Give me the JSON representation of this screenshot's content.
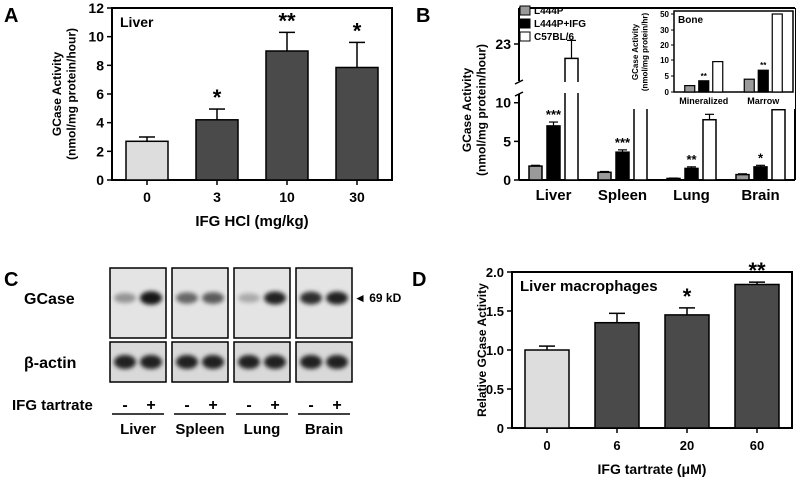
{
  "panel_labels": {
    "a": "A",
    "b": "B",
    "c": "C",
    "d": "D"
  },
  "colors": {
    "dark": "#4a4a4a",
    "light": "#dddddd",
    "mid": "#9a9a9a",
    "white": "#ffffff",
    "black": "#000000"
  },
  "chart_data": [
    {
      "id": "A",
      "type": "bar",
      "inner_title": "Liver",
      "categories": [
        "0",
        "3",
        "10",
        "30"
      ],
      "values": [
        2.7,
        4.2,
        9.0,
        7.85
      ],
      "errors": [
        0.3,
        0.75,
        1.3,
        1.75
      ],
      "significance": [
        "",
        "*",
        "**",
        "*"
      ],
      "bar_colors": [
        "light",
        "dark",
        "dark",
        "dark"
      ],
      "ylim": [
        0,
        12
      ],
      "yticks": [
        "0",
        "2",
        "4",
        "6",
        "8",
        "10",
        "12"
      ],
      "ylabel_lines": [
        "GCase Activity",
        "(nmol/mg protein/hour)"
      ],
      "xlabel": "IFG HCl (mg/kg)"
    },
    {
      "id": "B",
      "type": "bar",
      "categories": [
        "Liver",
        "Spleen",
        "Lung",
        "Brain"
      ],
      "series": [
        {
          "name": "L444P",
          "values": [
            1.8,
            1.0,
            0.2,
            0.7
          ],
          "errors": [
            0.1,
            0.1,
            0.05,
            0.1
          ],
          "color": "mid"
        },
        {
          "name": "L444P+IFG",
          "values": [
            7.0,
            3.6,
            1.5,
            1.7
          ],
          "errors": [
            0.5,
            0.3,
            0.2,
            0.2
          ],
          "color": "black"
        },
        {
          "name": "C57BL/6",
          "values": [
            22.2,
            10.7,
            7.8,
            9.1
          ],
          "errors": [
            1.0,
            0.3,
            0.7,
            0.2
          ],
          "color": "white"
        }
      ],
      "significance": [
        "***",
        "***",
        "**",
        "*"
      ],
      "axis_break": [
        11,
        21
      ],
      "yticks": [
        "0",
        "5",
        "10",
        "23"
      ],
      "ylabel_lines": [
        "GCase Activity",
        "(nmol/mg protein/hour)"
      ],
      "inset": {
        "title": "Bone",
        "categories": [
          "Mineralized",
          "Marrow"
        ],
        "series": [
          {
            "name": "L444P",
            "values": [
              2,
              4
            ],
            "color": "mid"
          },
          {
            "name": "L444P+IFG",
            "values": [
              3.5,
              6.8
            ],
            "color": "black"
          },
          {
            "name": "C57BL/6",
            "values": [
              9.5,
              50
            ],
            "color": "white"
          }
        ],
        "significance": [
          "**",
          "**"
        ],
        "yticks": [
          "0",
          "5",
          "10",
          "20",
          "30",
          "50"
        ],
        "ylabel_lines": [
          "GCase Activity",
          "(nmol/mg protein/hr)"
        ]
      }
    },
    {
      "id": "D",
      "type": "bar",
      "inner_title": "Liver macrophages",
      "categories": [
        "0",
        "6",
        "20",
        "60"
      ],
      "values": [
        1.0,
        1.35,
        1.45,
        1.84
      ],
      "errors": [
        0.05,
        0.12,
        0.09,
        0.03
      ],
      "significance": [
        "",
        "",
        "*",
        "**"
      ],
      "bar_colors": [
        "light",
        "dark",
        "dark",
        "dark"
      ],
      "ylim": [
        0,
        2.0
      ],
      "yticks": [
        "0",
        "0.5",
        "1.0",
        "1.5",
        "2.0"
      ],
      "ylabel_lines": [
        "Relative GCase Activity"
      ],
      "xlabel": "IFG tartrate (μM)"
    }
  ],
  "western": {
    "row_labels": [
      "GCase",
      "β-actin"
    ],
    "marker": "◄ 69 kD",
    "treatment_label": "IFG tartrate",
    "signs": [
      "-",
      "+"
    ],
    "tissues": [
      "Liver",
      "Spleen",
      "Lung",
      "Brain"
    ],
    "gcase_intensity": [
      [
        0.35,
        0.9
      ],
      [
        0.55,
        0.6
      ],
      [
        0.25,
        0.85
      ],
      [
        0.8,
        0.85
      ]
    ],
    "actin_intensity": [
      [
        0.85,
        0.85
      ],
      [
        0.85,
        0.85
      ],
      [
        0.85,
        0.85
      ],
      [
        0.85,
        0.85
      ]
    ]
  }
}
